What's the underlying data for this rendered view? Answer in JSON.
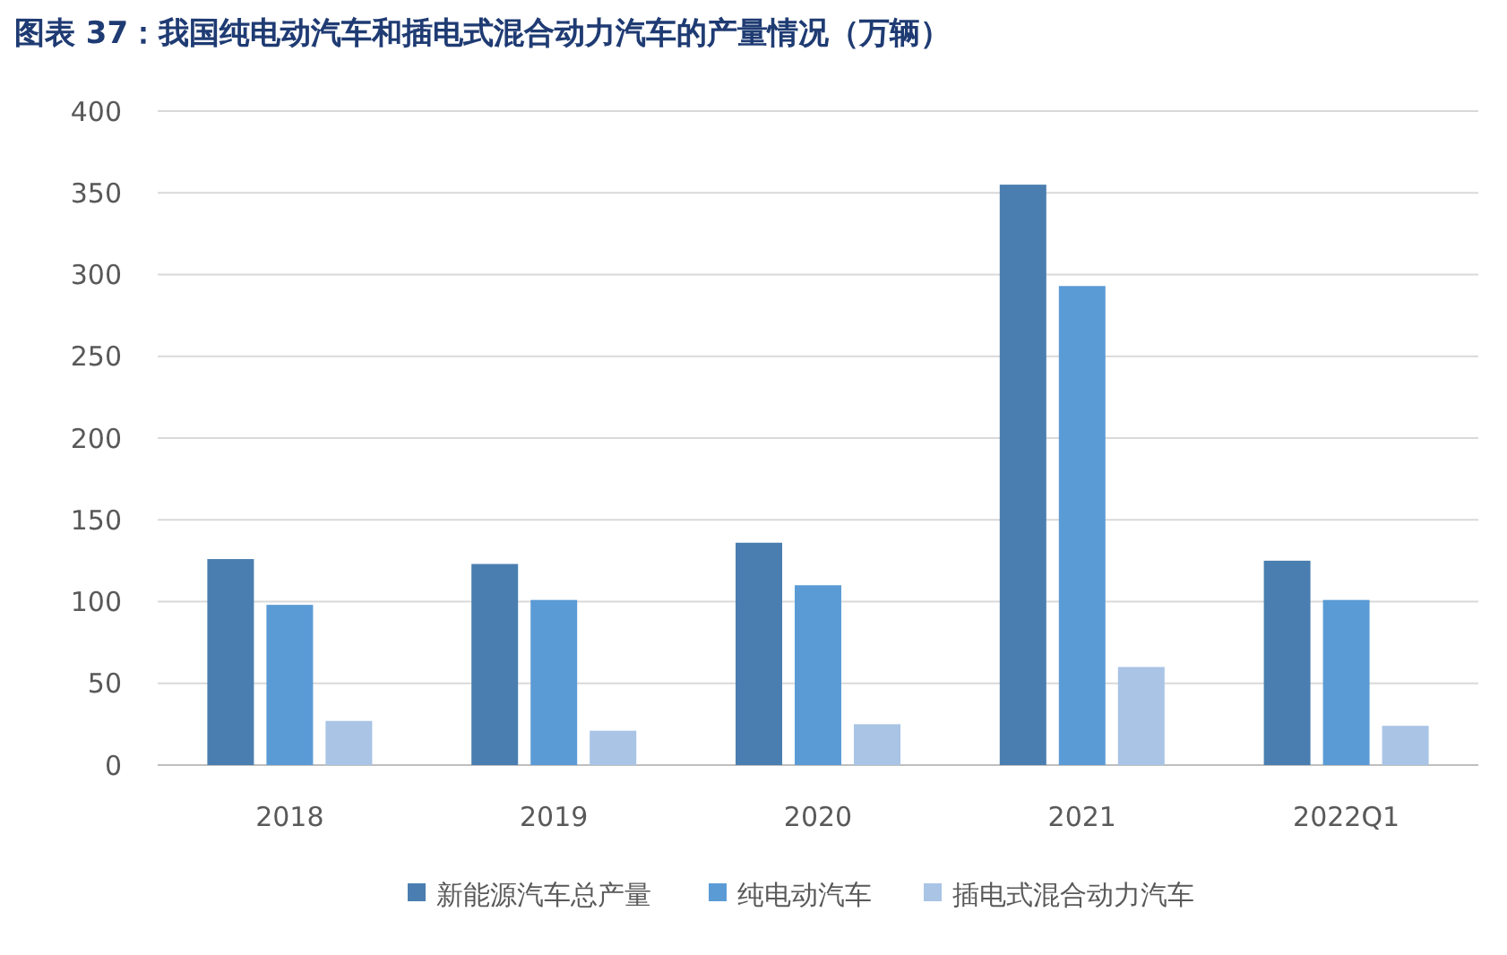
{
  "chart_data": {
    "type": "bar",
    "title": "图表 37：我国纯电动汽车和插电式混合动力汽车的产量情况（万辆）",
    "categories": [
      "2018",
      "2019",
      "2020",
      "2021",
      "2022Q1"
    ],
    "series": [
      {
        "name": "新能源汽车总产量",
        "color": "#4a7eb0",
        "values": [
          126,
          123,
          136,
          355,
          125
        ]
      },
      {
        "name": "纯电动汽车",
        "color": "#5b9bd5",
        "values": [
          98,
          101,
          110,
          293,
          101
        ]
      },
      {
        "name": "插电式混合动力汽车",
        "color": "#a9c4e5",
        "values": [
          27,
          21,
          25,
          60,
          24
        ]
      }
    ],
    "ylim": [
      0,
      400
    ],
    "yticks": [
      0,
      50,
      100,
      150,
      200,
      250,
      300,
      350,
      400
    ],
    "grid": "y",
    "legend": "bottom"
  }
}
